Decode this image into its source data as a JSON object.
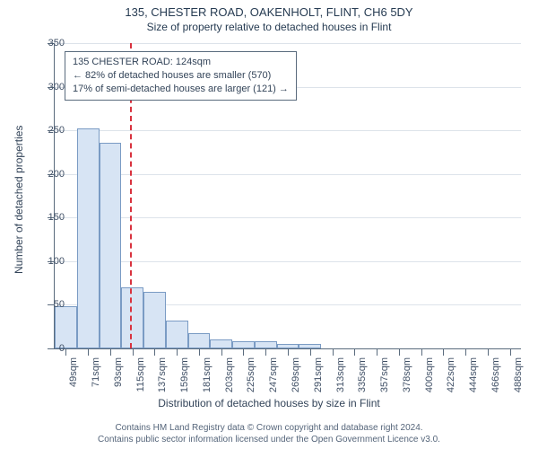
{
  "title": "135, CHESTER ROAD, OAKENHOLT, FLINT, CH6 5DY",
  "subtitle": "Size of property relative to detached houses in Flint",
  "y_axis_title": "Number of detached properties",
  "x_axis_title": "Distribution of detached houses by size in Flint",
  "footer_line1": "Contains HM Land Registry data © Crown copyright and database right 2024.",
  "footer_line2": "Contains public sector information licensed under the Open Government Licence v3.0.",
  "info_box": {
    "line1": "135 CHESTER ROAD: 124sqm",
    "line2": "← 82% of detached houses are smaller (570)",
    "line3": "17% of semi-detached houses are larger (121) →"
  },
  "chart": {
    "type": "histogram",
    "ylim": [
      0,
      350
    ],
    "ytick_step": 50,
    "x_categories": [
      "49sqm",
      "71sqm",
      "93sqm",
      "115sqm",
      "137sqm",
      "159sqm",
      "181sqm",
      "203sqm",
      "225sqm",
      "247sqm",
      "269sqm",
      "291sqm",
      "313sqm",
      "335sqm",
      "357sqm",
      "378sqm",
      "400sqm",
      "422sqm",
      "444sqm",
      "466sqm",
      "488sqm"
    ],
    "values": [
      48,
      252,
      236,
      70,
      65,
      32,
      18,
      10,
      8,
      8,
      5,
      5,
      0,
      0,
      0,
      0,
      0,
      0,
      0,
      0,
      0
    ],
    "bar_fill": "#d7e4f4",
    "bar_stroke": "#7a9bc4",
    "grid_color": "#dde3ea",
    "axis_color": "#5a6b7d",
    "background_color": "#ffffff",
    "reference_line": {
      "index": 3.4,
      "color": "#d9333f"
    }
  }
}
